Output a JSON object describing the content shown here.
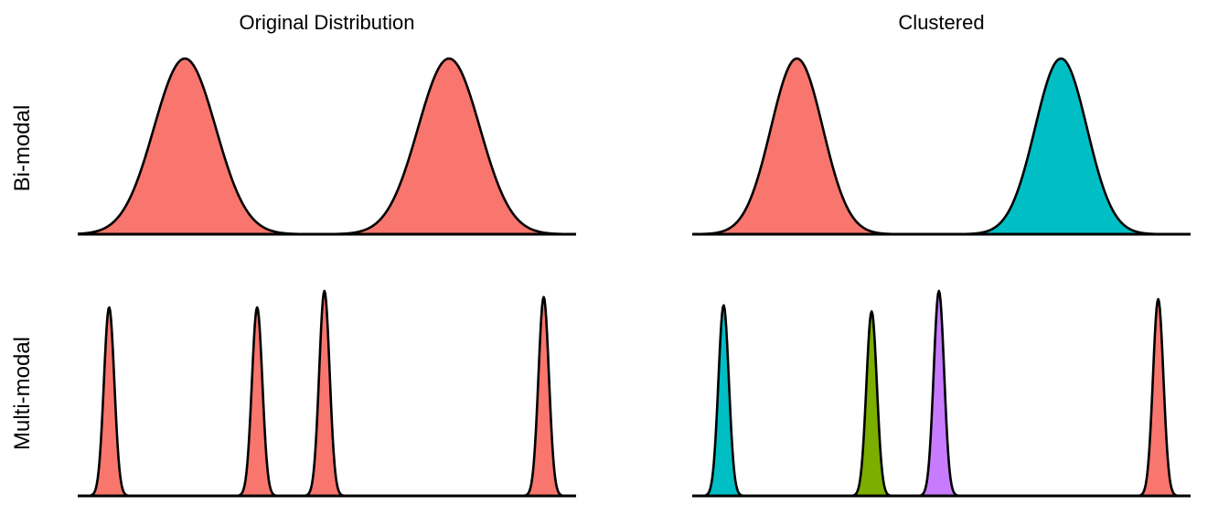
{
  "column_titles": [
    "Original Distribution",
    "Clustered"
  ],
  "row_titles": [
    "Bi-modal",
    "Multi-modal"
  ],
  "colors": {
    "red": "#F8766D",
    "teal": "#00BFC4",
    "green": "#7CAE00",
    "purple": "#C77CFF",
    "outline": "#000000"
  },
  "chart_data": [
    {
      "type": "area",
      "row": "Bi-modal",
      "column": "Original Distribution",
      "x_range": [
        0,
        1
      ],
      "y_range": [
        0,
        1
      ],
      "grid": false,
      "components": [
        {
          "mean": 0.215,
          "sd": 0.062,
          "height": 1.0,
          "color": "red"
        },
        {
          "mean": 0.745,
          "sd": 0.062,
          "height": 1.0,
          "color": "red"
        }
      ]
    },
    {
      "type": "area",
      "row": "Bi-modal",
      "column": "Clustered",
      "x_range": [
        0,
        1
      ],
      "y_range": [
        0,
        1
      ],
      "grid": false,
      "components": [
        {
          "mean": 0.21,
          "sd": 0.052,
          "height": 1.0,
          "color": "red"
        },
        {
          "mean": 0.74,
          "sd": 0.052,
          "height": 1.0,
          "color": "teal"
        }
      ]
    },
    {
      "type": "area",
      "row": "Multi-modal",
      "column": "Original Distribution",
      "x_range": [
        0,
        1
      ],
      "y_range": [
        0,
        1
      ],
      "grid": false,
      "components": [
        {
          "mean": 0.063,
          "sd": 0.0105,
          "height": 0.92,
          "color": "red"
        },
        {
          "mean": 0.36,
          "sd": 0.0105,
          "height": 0.92,
          "color": "red"
        },
        {
          "mean": 0.495,
          "sd": 0.0105,
          "height": 1.0,
          "color": "red"
        },
        {
          "mean": 0.935,
          "sd": 0.0105,
          "height": 0.97,
          "color": "red"
        }
      ]
    },
    {
      "type": "area",
      "row": "Multi-modal",
      "column": "Clustered",
      "x_range": [
        0,
        1
      ],
      "y_range": [
        0,
        1
      ],
      "grid": false,
      "components": [
        {
          "mean": 0.063,
          "sd": 0.0105,
          "height": 0.93,
          "color": "teal"
        },
        {
          "mean": 0.36,
          "sd": 0.0105,
          "height": 0.9,
          "color": "green"
        },
        {
          "mean": 0.495,
          "sd": 0.0105,
          "height": 1.0,
          "color": "purple"
        },
        {
          "mean": 0.935,
          "sd": 0.0105,
          "height": 0.96,
          "color": "red"
        }
      ]
    }
  ]
}
